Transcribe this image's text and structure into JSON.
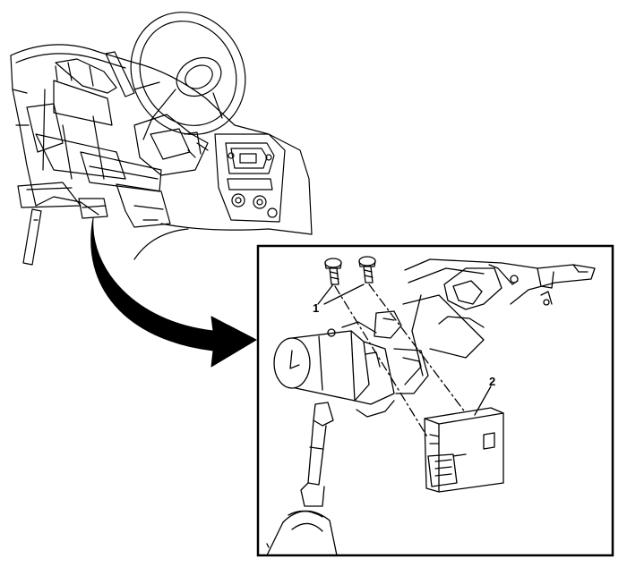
{
  "callouts": {
    "bolts": "1",
    "module": "2"
  },
  "colors": {
    "line": "#000000",
    "background": "#ffffff",
    "arrow_fill": "#000000"
  }
}
